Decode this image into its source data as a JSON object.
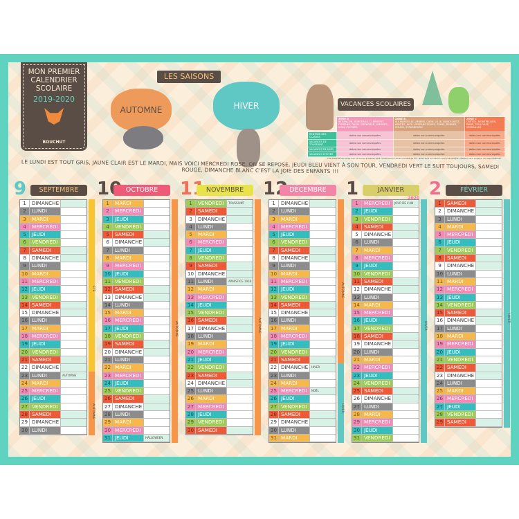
{
  "header": {
    "title_lines": [
      "MON PREMIER",
      "CALENDRIER",
      "SCOLAIRE"
    ],
    "years": "2019-2020",
    "brand": "BOUCHUT",
    "saisons_label": "LES SAISONS",
    "automne": "AUTOMNE",
    "hiver": "HIVER",
    "vacances_label": "VACANCES SCOLAIRES",
    "poem": "LE LUNDI EST TOUT GRIS, JAUNE CLAIR EST LE MARDI, MAIS VOICI MERCREDI ROSE, ON SE REPOSE, JEUDI BLEU VIENT À SON TOUR, VENDREDI VERT LE SUIT TOUJOURS, SAMEDI ROUGE, DIMANCHE BLANC C'EST LA JOIE DES ENFANTS !!!"
  },
  "vacances": {
    "zones": [
      {
        "name": "ZONE A",
        "cities": "BESANÇON, BORDEAUX, CLERMONT-FERRAND, DIJON, GRENOBLE, LIMOGES, LYON, POITIERS",
        "color": "#f49ab8"
      },
      {
        "name": "ZONE B",
        "cities": "AIX-MARSEILLE, AMIENS, CAEN, LILLE, NANCY-METZ, NANTES, NICE, ORLÉANS-TOURS, REIMS, RENNES, ROUEN, STRASBOURG",
        "color": "#d8a27c"
      },
      {
        "name": "ZONE C",
        "cities": "CRÉTEIL, MONTPELLIER, PARIS, TOULOUSE, VERSAILLES",
        "color": "#f47c55"
      }
    ],
    "rows": [
      {
        "label": "RENTRÉE DES CLASSES",
        "values": [
          "dates non communiquées",
          "dates non communiquées",
          "dates non communiquées"
        ]
      },
      {
        "label": "VACANCES DE TOUSSAINT",
        "values": [
          "dates non communiquées",
          "dates non communiquées",
          "dates non communiquées"
        ]
      },
      {
        "label": "VACANCES DE NOËL",
        "values": [
          "dates non communiquées",
          "dates non communiquées",
          "dates non communiquées"
        ]
      },
      {
        "label": "VACANCES D'HIVER",
        "values": [
          "dates non communiquées",
          "dates non communiquées",
          "dates non communiquées"
        ]
      }
    ],
    "footnote": "Les dates et les zones des vacances scolaires sont conformes à l'arrêté ministériel du... Elles sont données à titre indicatif par l'éditeur sans engager sa responsabilité."
  },
  "day_colors": {
    "LUNDI": "#8c8c8c",
    "MARDI": "#f6b84a",
    "MERCREDI": "#f38bb6",
    "JEUDI": "#35bdbd",
    "VENDREDI": "#9dcc57",
    "SAMEDI": "#ee5a38",
    "DIMANCHE": "#ffffff"
  },
  "months": [
    {
      "num": "9",
      "name": "SEPTEMBRE",
      "year": "",
      "header_bg": "#5a4d45",
      "header_fg": "#f5c27a",
      "num_color": "#5fc8c4",
      "seasons": [
        {
          "label": "ÉTÉ",
          "from": 1,
          "to": 22,
          "color": "#f7c531"
        },
        {
          "label": "AUTOMNE",
          "from": 23,
          "to": 30,
          "color": "#f6964a"
        }
      ],
      "notes": {
        "23": "AUTOMNE"
      },
      "days": [
        [
          1,
          "DIMANCHE"
        ],
        [
          2,
          "LUNDI"
        ],
        [
          3,
          "MARDI"
        ],
        [
          4,
          "MERCREDI"
        ],
        [
          5,
          "JEUDI"
        ],
        [
          6,
          "VENDREDI"
        ],
        [
          7,
          "SAMEDI"
        ],
        [
          8,
          "DIMANCHE"
        ],
        [
          9,
          "LUNDI"
        ],
        [
          10,
          "MARDI"
        ],
        [
          11,
          "MERCREDI"
        ],
        [
          12,
          "JEUDI"
        ],
        [
          13,
          "VENDREDI"
        ],
        [
          14,
          "SAMEDI"
        ],
        [
          15,
          "DIMANCHE"
        ],
        [
          16,
          "LUNDI"
        ],
        [
          17,
          "MARDI"
        ],
        [
          18,
          "MERCREDI"
        ],
        [
          19,
          "JEUDI"
        ],
        [
          20,
          "VENDREDI"
        ],
        [
          21,
          "SAMEDI"
        ],
        [
          22,
          "DIMANCHE"
        ],
        [
          23,
          "LUNDI"
        ],
        [
          24,
          "MARDI"
        ],
        [
          25,
          "MERCREDI"
        ],
        [
          26,
          "JEUDI"
        ],
        [
          27,
          "VENDREDI"
        ],
        [
          28,
          "SAMEDI"
        ],
        [
          29,
          "DIMANCHE"
        ],
        [
          30,
          "LUNDI"
        ]
      ]
    },
    {
      "num": "10",
      "name": "OCTOBRE",
      "year": "",
      "header_bg": "#ee5a78",
      "header_fg": "#ffffff",
      "num_color": "#5a4d45",
      "seasons": [
        {
          "label": "AUTOMNE",
          "from": 1,
          "to": 31,
          "color": "#f6964a"
        }
      ],
      "notes": {
        "31": "HALLOWEEN"
      },
      "days": [
        [
          1,
          "MARDI"
        ],
        [
          2,
          "MERCREDI"
        ],
        [
          3,
          "JEUDI"
        ],
        [
          4,
          "VENDREDI"
        ],
        [
          5,
          "SAMEDI"
        ],
        [
          6,
          "DIMANCHE"
        ],
        [
          7,
          "LUNDI"
        ],
        [
          8,
          "MARDI"
        ],
        [
          9,
          "MERCREDI"
        ],
        [
          10,
          "JEUDI"
        ],
        [
          11,
          "VENDREDI"
        ],
        [
          12,
          "SAMEDI"
        ],
        [
          13,
          "DIMANCHE"
        ],
        [
          14,
          "LUNDI"
        ],
        [
          15,
          "MARDI"
        ],
        [
          16,
          "MERCREDI"
        ],
        [
          17,
          "JEUDI"
        ],
        [
          18,
          "VENDREDI"
        ],
        [
          19,
          "SAMEDI"
        ],
        [
          20,
          "DIMANCHE"
        ],
        [
          21,
          "LUNDI"
        ],
        [
          22,
          "MARDI"
        ],
        [
          23,
          "MERCREDI"
        ],
        [
          24,
          "JEUDI"
        ],
        [
          25,
          "VENDREDI"
        ],
        [
          26,
          "SAMEDI"
        ],
        [
          27,
          "DIMANCHE"
        ],
        [
          28,
          "LUNDI"
        ],
        [
          29,
          "MARDI"
        ],
        [
          30,
          "MERCREDI"
        ],
        [
          31,
          "JEUDI"
        ]
      ]
    },
    {
      "num": "11",
      "name": "NOVEMBRE",
      "year": "",
      "header_bg": "#e8e34a",
      "header_fg": "#5a4d45",
      "num_color": "#f06f5a",
      "seasons": [
        {
          "label": "AUTOMNE",
          "from": 1,
          "to": 30,
          "color": "#f6964a"
        }
      ],
      "notes": {
        "1": "TOUSSAINT",
        "11": "ARMISTICE 1918"
      },
      "days": [
        [
          1,
          "VENDREDI"
        ],
        [
          2,
          "SAMEDI"
        ],
        [
          3,
          "DIMANCHE"
        ],
        [
          4,
          "LUNDI"
        ],
        [
          5,
          "MARDI"
        ],
        [
          6,
          "MERCREDI"
        ],
        [
          7,
          "JEUDI"
        ],
        [
          8,
          "VENDREDI"
        ],
        [
          9,
          "SAMEDI"
        ],
        [
          10,
          "DIMANCHE"
        ],
        [
          11,
          "LUNDI"
        ],
        [
          12,
          "MARDI"
        ],
        [
          13,
          "MERCREDI"
        ],
        [
          14,
          "JEUDI"
        ],
        [
          15,
          "VENDREDI"
        ],
        [
          16,
          "SAMEDI"
        ],
        [
          17,
          "DIMANCHE"
        ],
        [
          18,
          "LUNDI"
        ],
        [
          19,
          "MARDI"
        ],
        [
          20,
          "MERCREDI"
        ],
        [
          21,
          "JEUDI"
        ],
        [
          22,
          "VENDREDI"
        ],
        [
          23,
          "SAMEDI"
        ],
        [
          24,
          "DIMANCHE"
        ],
        [
          25,
          "LUNDI"
        ],
        [
          26,
          "MARDI"
        ],
        [
          27,
          "MERCREDI"
        ],
        [
          28,
          "JEUDI"
        ],
        [
          29,
          "VENDREDI"
        ],
        [
          30,
          "SAMEDI"
        ]
      ]
    },
    {
      "num": "12",
      "name": "DÉCEMBRE",
      "year": "",
      "header_bg": "#f386a8",
      "header_fg": "#ffffff",
      "num_color": "#5a4d45",
      "seasons": [
        {
          "label": "AUTOMNE",
          "from": 1,
          "to": 21,
          "color": "#f6964a"
        },
        {
          "label": "HIVER",
          "from": 22,
          "to": 31,
          "color": "#5fc8c4"
        }
      ],
      "notes": {
        "22": "HIVER",
        "25": "NOËL"
      },
      "days": [
        [
          1,
          "DIMANCHE"
        ],
        [
          2,
          "LUNDI"
        ],
        [
          3,
          "MARDI"
        ],
        [
          4,
          "MERCREDI"
        ],
        [
          5,
          "JEUDI"
        ],
        [
          6,
          "VENDREDI"
        ],
        [
          7,
          "SAMEDI"
        ],
        [
          8,
          "DIMANCHE"
        ],
        [
          9,
          "LUNDI"
        ],
        [
          10,
          "MARDI"
        ],
        [
          11,
          "MERCREDI"
        ],
        [
          12,
          "JEUDI"
        ],
        [
          13,
          "VENDREDI"
        ],
        [
          14,
          "SAMEDI"
        ],
        [
          15,
          "DIMANCHE"
        ],
        [
          16,
          "LUNDI"
        ],
        [
          17,
          "MARDI"
        ],
        [
          18,
          "MERCREDI"
        ],
        [
          19,
          "JEUDI"
        ],
        [
          20,
          "VENDREDI"
        ],
        [
          21,
          "SAMEDI"
        ],
        [
          22,
          "DIMANCHE"
        ],
        [
          23,
          "LUNDI"
        ],
        [
          24,
          "MARDI"
        ],
        [
          25,
          "MERCREDI"
        ],
        [
          26,
          "JEUDI"
        ],
        [
          27,
          "VENDREDI"
        ],
        [
          28,
          "SAMEDI"
        ],
        [
          29,
          "DIMANCHE"
        ],
        [
          30,
          "LUNDI"
        ],
        [
          31,
          "MARDI"
        ]
      ]
    },
    {
      "num": "1",
      "name": "JANVIER",
      "year": "2020",
      "header_bg": "#d9cf6a",
      "header_fg": "#5a4d45",
      "num_color": "#5a4d45",
      "seasons": [
        {
          "label": "HIVER",
          "from": 1,
          "to": 31,
          "color": "#5fc8c4"
        }
      ],
      "notes": {
        "1": "JOUR DE L'AN"
      },
      "days": [
        [
          1,
          "MERCREDI"
        ],
        [
          2,
          "JEUDI"
        ],
        [
          3,
          "VENDREDI"
        ],
        [
          4,
          "SAMEDI"
        ],
        [
          5,
          "DIMANCHE"
        ],
        [
          6,
          "LUNDI"
        ],
        [
          7,
          "MARDI"
        ],
        [
          8,
          "MERCREDI"
        ],
        [
          9,
          "JEUDI"
        ],
        [
          10,
          "VENDREDI"
        ],
        [
          11,
          "SAMEDI"
        ],
        [
          12,
          "DIMANCHE"
        ],
        [
          13,
          "LUNDI"
        ],
        [
          14,
          "MARDI"
        ],
        [
          15,
          "MERCREDI"
        ],
        [
          16,
          "JEUDI"
        ],
        [
          17,
          "VENDREDI"
        ],
        [
          18,
          "SAMEDI"
        ],
        [
          19,
          "DIMANCHE"
        ],
        [
          20,
          "LUNDI"
        ],
        [
          21,
          "MARDI"
        ],
        [
          22,
          "MERCREDI"
        ],
        [
          23,
          "JEUDI"
        ],
        [
          24,
          "VENDREDI"
        ],
        [
          25,
          "SAMEDI"
        ],
        [
          26,
          "DIMANCHE"
        ],
        [
          27,
          "LUNDI"
        ],
        [
          28,
          "MARDI"
        ],
        [
          29,
          "MERCREDI"
        ],
        [
          30,
          "JEUDI"
        ],
        [
          31,
          "VENDREDI"
        ]
      ]
    },
    {
      "num": "2",
      "name": "FÉVRIER",
      "year": "",
      "header_bg": "#5a4d45",
      "header_fg": "#7fd6c8",
      "num_color": "#f06f8f",
      "seasons": [
        {
          "label": "HIVER",
          "from": 1,
          "to": 29,
          "color": "#5fc8c4"
        }
      ],
      "notes": {},
      "days": [
        [
          1,
          "SAMEDI"
        ],
        [
          2,
          "DIMANCHE"
        ],
        [
          3,
          "LUNDI"
        ],
        [
          4,
          "MARDI"
        ],
        [
          5,
          "MERCREDI"
        ],
        [
          6,
          "JEUDI"
        ],
        [
          7,
          "VENDREDI"
        ],
        [
          8,
          "SAMEDI"
        ],
        [
          9,
          "DIMANCHE"
        ],
        [
          10,
          "LUNDI"
        ],
        [
          11,
          "MARDI"
        ],
        [
          12,
          "MERCREDI"
        ],
        [
          13,
          "JEUDI"
        ],
        [
          14,
          "VENDREDI"
        ],
        [
          15,
          "SAMEDI"
        ],
        [
          16,
          "DIMANCHE"
        ],
        [
          17,
          "LUNDI"
        ],
        [
          18,
          "MARDI"
        ],
        [
          19,
          "MERCREDI"
        ],
        [
          20,
          "JEUDI"
        ],
        [
          21,
          "VENDREDI"
        ],
        [
          22,
          "SAMEDI"
        ],
        [
          23,
          "DIMANCHE"
        ],
        [
          24,
          "LUNDI"
        ],
        [
          25,
          "MARDI"
        ],
        [
          26,
          "MERCREDI"
        ],
        [
          27,
          "JEUDI"
        ],
        [
          28,
          "VENDREDI"
        ],
        [
          29,
          "SAMEDI"
        ]
      ]
    }
  ]
}
